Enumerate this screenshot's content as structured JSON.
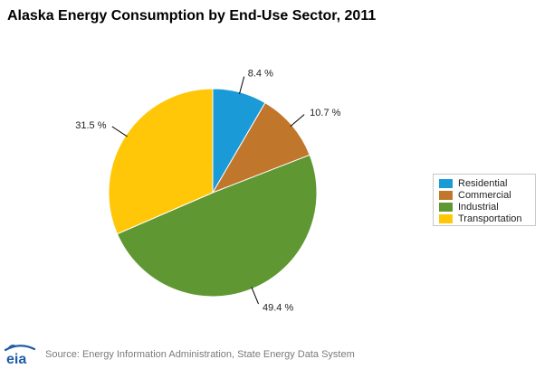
{
  "title": "Alaska Energy Consumption by End-Use Sector, 2011",
  "chart_data": {
    "type": "pie",
    "title": "Alaska Energy Consumption by End-Use Sector, 2011",
    "categories": [
      "Residential",
      "Commercial",
      "Industrial",
      "Transportation"
    ],
    "values": [
      8.4,
      10.7,
      49.4,
      31.5
    ],
    "labels": [
      "8.4 %",
      "10.7 %",
      "49.4 %",
      "31.5 %"
    ],
    "colors": [
      "#1a9ad6",
      "#c0762b",
      "#5f9733",
      "#ffc708"
    ],
    "start_angle_deg": 0,
    "direction": "clockwise",
    "legend_position": "right"
  },
  "legend": {
    "items": [
      {
        "label": "Residential",
        "color": "#1a9ad6"
      },
      {
        "label": "Commercial",
        "color": "#c0762b"
      },
      {
        "label": "Industrial",
        "color": "#5f9733"
      },
      {
        "label": "Transportation",
        "color": "#ffc708"
      }
    ]
  },
  "footer": {
    "logo_text": "eia",
    "source": "Source: Energy Information Administration, State Energy Data System"
  },
  "colors": {
    "title": "#000000",
    "source_text": "#7a7a7a",
    "logo_blue": "#1f5ca8"
  }
}
